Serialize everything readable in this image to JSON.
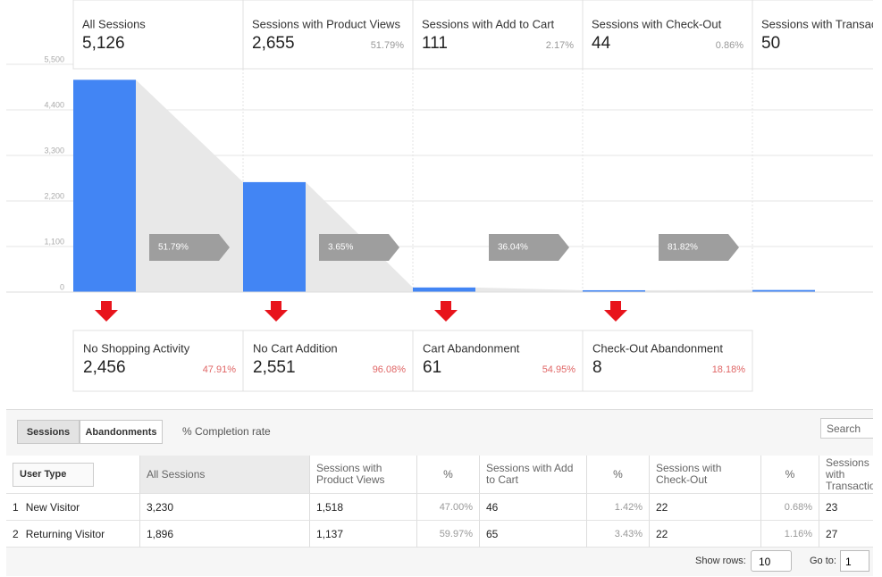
{
  "funnel": {
    "ylim": [
      0,
      5500
    ],
    "yticks": [
      0,
      {
        "value": 1100,
        "label": "1,100"
      },
      {
        "value": 2200,
        "label": "2,200"
      },
      {
        "value": 3300,
        "label": "3,300"
      },
      {
        "value": 4400,
        "label": "4,400"
      },
      {
        "value": 5500,
        "label": "5,500"
      }
    ],
    "bar_color": "#4285f4",
    "stages": [
      {
        "label": "All Sessions",
        "value": 5126,
        "value_label": "5,126"
      },
      {
        "label": "Sessions with Product Views",
        "value": 2655,
        "value_label": "2,655",
        "rate": "51.79%"
      },
      {
        "label": "Sessions with Add to Cart",
        "value": 111,
        "value_label": "111",
        "rate": "2.17%"
      },
      {
        "label": "Sessions with Check-Out",
        "value": 44,
        "value_label": "44",
        "rate": "0.86%"
      },
      {
        "label": "Sessions with Transactions",
        "value": 50,
        "value_label": "50"
      }
    ],
    "completion": [
      "51.79%",
      "3.65%",
      "36.04%",
      "81.82%"
    ],
    "abandonments": [
      {
        "label": "No Shopping Activity",
        "value": "2,456",
        "rate": "47.91%"
      },
      {
        "label": "No Cart Addition",
        "value": "2,551",
        "rate": "96.08%"
      },
      {
        "label": "Cart Abandonment",
        "value": "61",
        "rate": "54.95%"
      },
      {
        "label": "Check-Out Abandonment",
        "value": "8",
        "rate": "18.18%"
      }
    ]
  },
  "controls": {
    "tabs": [
      "Sessions",
      "Abandonments"
    ],
    "completion_toggle": "% Completion rate",
    "search": "Search"
  },
  "table": {
    "headers": [
      "User Type",
      "All Sessions",
      "Sessions with Product Views",
      "%",
      "Sessions with Add to Cart",
      "%",
      "Sessions with Check-Out",
      "%",
      "Sessions with Transactions"
    ],
    "rows": [
      [
        "1",
        "New Visitor",
        "3,230",
        "1,518",
        "47.00%",
        "46",
        "1.42%",
        "22",
        "0.68%",
        "23"
      ],
      [
        "2",
        "Returning Visitor",
        "1,896",
        "1,137",
        "59.97%",
        "65",
        "3.43%",
        "22",
        "1.16%",
        "27"
      ]
    ]
  },
  "footer": {
    "show_rows": "Show rows:",
    "rows_value": "10",
    "go_to": "Go to:",
    "page": "1"
  }
}
